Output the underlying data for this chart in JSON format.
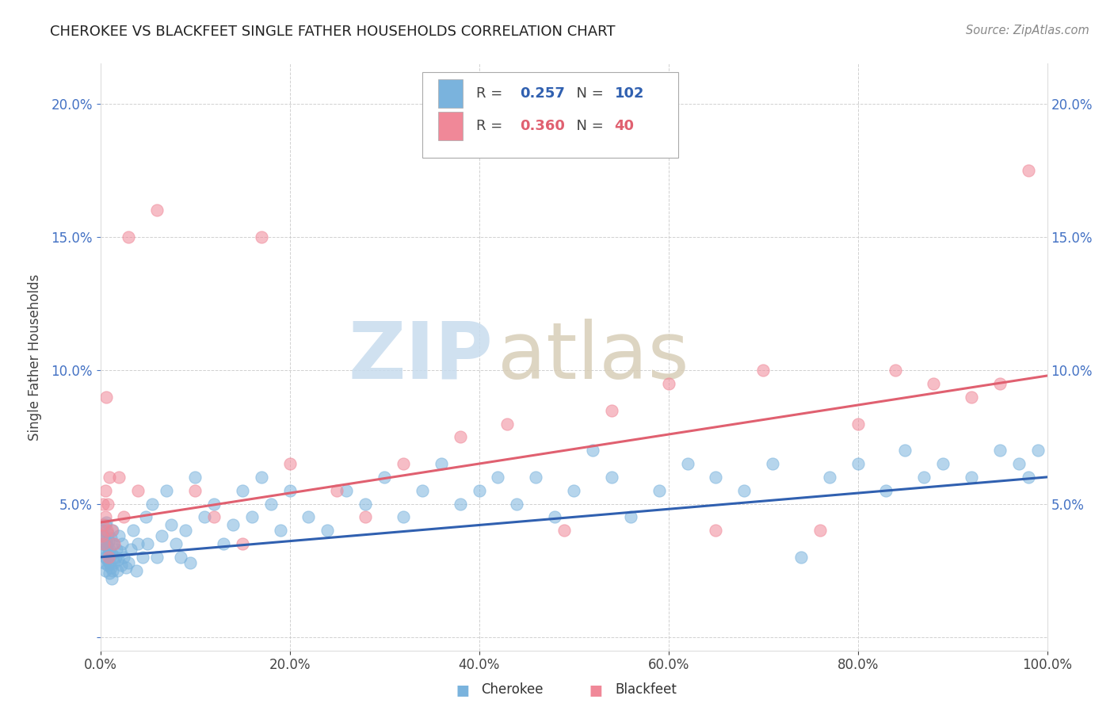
{
  "title": "CHEROKEE VS BLACKFEET SINGLE FATHER HOUSEHOLDS CORRELATION CHART",
  "source": "Source: ZipAtlas.com",
  "ylabel": "Single Father Households",
  "xlim": [
    0,
    1.0
  ],
  "ylim": [
    -0.005,
    0.215
  ],
  "xtick_vals": [
    0.0,
    0.2,
    0.4,
    0.6,
    0.8,
    1.0
  ],
  "xtick_labels": [
    "0.0%",
    "20.0%",
    "40.0%",
    "60.0%",
    "80.0%",
    "100.0%"
  ],
  "ytick_vals": [
    0.0,
    0.05,
    0.1,
    0.15,
    0.2
  ],
  "ytick_labels": [
    "",
    "5.0%",
    "10.0%",
    "15.0%",
    "20.0%"
  ],
  "cherokee_color": "#7ab3dd",
  "blackfeet_color": "#f08898",
  "cherokee_line_color": "#3060b0",
  "blackfeet_line_color": "#e06070",
  "cherokee_R": 0.257,
  "cherokee_N": 102,
  "blackfeet_R": 0.36,
  "blackfeet_N": 40,
  "cherokee_line_start_y": 0.03,
  "cherokee_line_end_y": 0.06,
  "blackfeet_line_start_y": 0.043,
  "blackfeet_line_end_y": 0.098,
  "cherokee_scatter_x": [
    0.002,
    0.002,
    0.003,
    0.003,
    0.004,
    0.004,
    0.004,
    0.005,
    0.005,
    0.005,
    0.006,
    0.006,
    0.007,
    0.007,
    0.008,
    0.008,
    0.009,
    0.009,
    0.01,
    0.01,
    0.01,
    0.011,
    0.011,
    0.012,
    0.012,
    0.013,
    0.013,
    0.014,
    0.015,
    0.016,
    0.017,
    0.018,
    0.019,
    0.02,
    0.021,
    0.022,
    0.023,
    0.025,
    0.027,
    0.03,
    0.032,
    0.035,
    0.038,
    0.04,
    0.045,
    0.048,
    0.05,
    0.055,
    0.06,
    0.065,
    0.07,
    0.075,
    0.08,
    0.085,
    0.09,
    0.095,
    0.1,
    0.11,
    0.12,
    0.13,
    0.14,
    0.15,
    0.16,
    0.17,
    0.18,
    0.19,
    0.2,
    0.22,
    0.24,
    0.26,
    0.28,
    0.3,
    0.32,
    0.34,
    0.36,
    0.38,
    0.4,
    0.42,
    0.44,
    0.46,
    0.48,
    0.5,
    0.52,
    0.54,
    0.56,
    0.59,
    0.62,
    0.65,
    0.68,
    0.71,
    0.74,
    0.77,
    0.8,
    0.83,
    0.85,
    0.87,
    0.89,
    0.92,
    0.95,
    0.97,
    0.98,
    0.99
  ],
  "cherokee_scatter_y": [
    0.032,
    0.038,
    0.035,
    0.04,
    0.028,
    0.033,
    0.038,
    0.025,
    0.03,
    0.042,
    0.036,
    0.043,
    0.029,
    0.034,
    0.027,
    0.039,
    0.031,
    0.036,
    0.024,
    0.028,
    0.033,
    0.026,
    0.037,
    0.022,
    0.031,
    0.025,
    0.04,
    0.035,
    0.028,
    0.03,
    0.033,
    0.025,
    0.029,
    0.038,
    0.032,
    0.027,
    0.035,
    0.03,
    0.026,
    0.028,
    0.033,
    0.04,
    0.025,
    0.035,
    0.03,
    0.045,
    0.035,
    0.05,
    0.03,
    0.038,
    0.055,
    0.042,
    0.035,
    0.03,
    0.04,
    0.028,
    0.06,
    0.045,
    0.05,
    0.035,
    0.042,
    0.055,
    0.045,
    0.06,
    0.05,
    0.04,
    0.055,
    0.045,
    0.04,
    0.055,
    0.05,
    0.06,
    0.045,
    0.055,
    0.065,
    0.05,
    0.055,
    0.06,
    0.05,
    0.06,
    0.045,
    0.055,
    0.07,
    0.06,
    0.045,
    0.055,
    0.065,
    0.06,
    0.055,
    0.065,
    0.03,
    0.06,
    0.065,
    0.055,
    0.07,
    0.06,
    0.065,
    0.06,
    0.07,
    0.065,
    0.06,
    0.07
  ],
  "blackfeet_scatter_x": [
    0.002,
    0.003,
    0.003,
    0.004,
    0.005,
    0.005,
    0.006,
    0.007,
    0.008,
    0.009,
    0.01,
    0.012,
    0.015,
    0.02,
    0.025,
    0.03,
    0.04,
    0.06,
    0.1,
    0.12,
    0.15,
    0.17,
    0.2,
    0.25,
    0.28,
    0.32,
    0.38,
    0.43,
    0.49,
    0.54,
    0.6,
    0.65,
    0.7,
    0.76,
    0.8,
    0.84,
    0.88,
    0.92,
    0.95,
    0.98
  ],
  "blackfeet_scatter_y": [
    0.038,
    0.042,
    0.05,
    0.035,
    0.045,
    0.055,
    0.09,
    0.04,
    0.05,
    0.03,
    0.06,
    0.04,
    0.035,
    0.06,
    0.045,
    0.15,
    0.055,
    0.16,
    0.055,
    0.045,
    0.035,
    0.15,
    0.065,
    0.055,
    0.045,
    0.065,
    0.075,
    0.08,
    0.04,
    0.085,
    0.095,
    0.04,
    0.1,
    0.04,
    0.08,
    0.1,
    0.095,
    0.09,
    0.095,
    0.175
  ]
}
